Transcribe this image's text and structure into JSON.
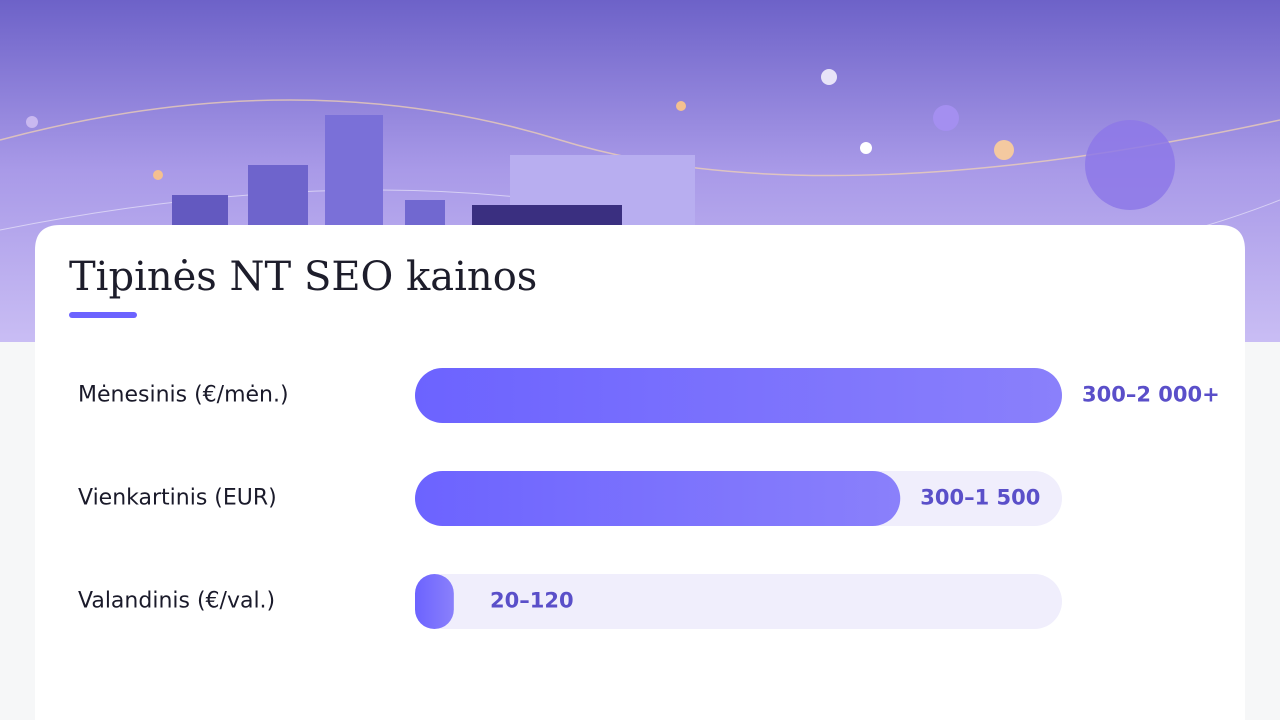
{
  "chart_data": {
    "type": "bar",
    "orientation": "horizontal",
    "title": "Tipinės NT SEO kainos",
    "categories": [
      "Mėnesinis (€/mėn.)",
      "Vienkartinis (EUR)",
      "Valandinis (€/val.)"
    ],
    "values": [
      2000,
      1500,
      120
    ],
    "value_labels": [
      "300–2 000+",
      "300–1 500",
      "20–120"
    ],
    "xlim": [
      0,
      2000
    ],
    "color": "#6c63ff"
  }
}
